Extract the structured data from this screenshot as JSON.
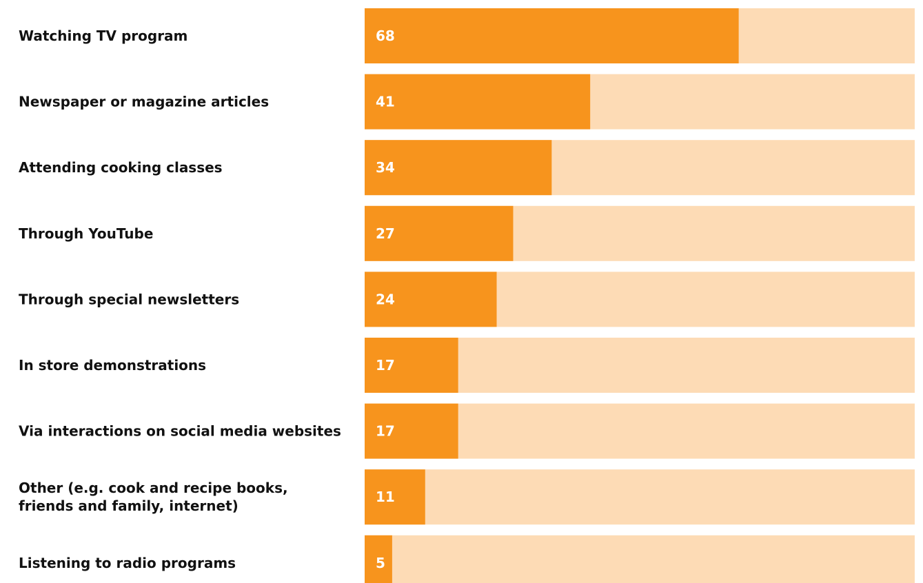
{
  "chart_data": {
    "type": "bar",
    "orientation": "horizontal",
    "categories": [
      [
        "Watching TV program"
      ],
      [
        "Newspaper or magazine articles"
      ],
      [
        "Attending cooking classes"
      ],
      [
        "Through YouTube"
      ],
      [
        "Through special newsletters"
      ],
      [
        "In store demonstrations"
      ],
      [
        "Via interactions on social media websites"
      ],
      [
        "Other (e.g. cook and recipe books,",
        "friends and family, internet)"
      ],
      [
        "Listening to radio programs"
      ]
    ],
    "values": [
      68,
      41,
      34,
      27,
      24,
      17,
      17,
      11,
      5
    ],
    "value_labels": [
      "68",
      "41",
      "34",
      "27",
      "24",
      "17",
      "17",
      "11",
      "5"
    ],
    "xlim": [
      0,
      100
    ],
    "title": "",
    "xlabel": "",
    "ylabel": "",
    "grid": false,
    "legend": "none",
    "colors": {
      "bar": "#f7941d",
      "track": "#fddbb5",
      "label_text": "#111111",
      "value_text": "#ffffff"
    }
  }
}
